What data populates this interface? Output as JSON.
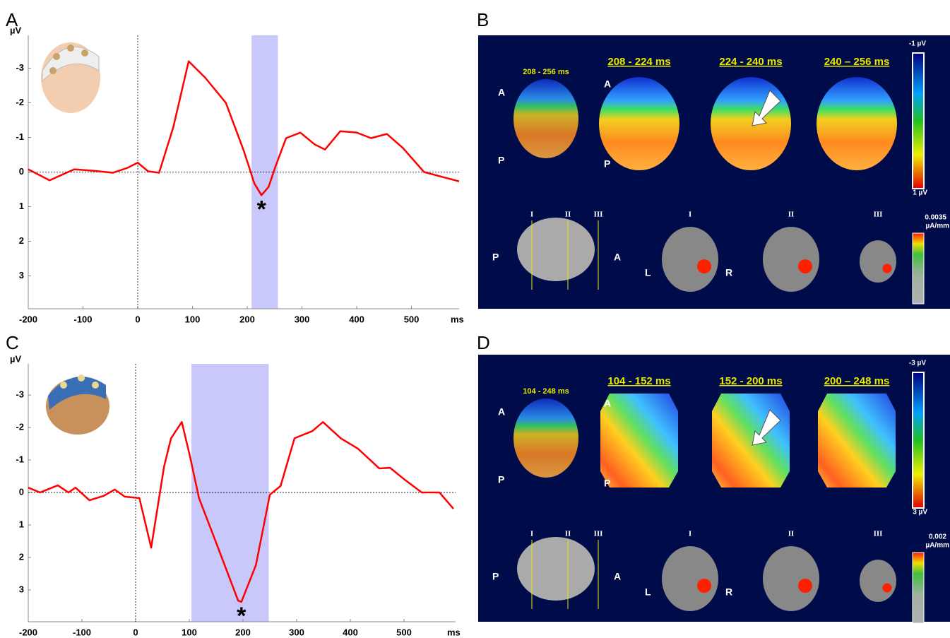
{
  "chart_data": [
    {
      "type": "line",
      "panel": "A",
      "ylabel": "µV",
      "xlabel": "ms",
      "x": [
        -200,
        -161,
        -116,
        -84,
        -45,
        -19,
        0,
        19,
        39,
        65,
        93,
        123,
        161,
        194,
        213,
        226,
        239,
        252,
        271,
        297,
        323,
        342,
        370,
        400,
        426,
        455,
        484,
        523,
        587
      ],
      "series": [
        {
          "color": "#ff0000",
          "values": [
            -0.08,
            0.24,
            -0.08,
            -0.04,
            0.02,
            -0.12,
            -0.27,
            -0.02,
            0.02,
            -1.3,
            -3.2,
            -2.73,
            -2.0,
            -0.6,
            0.33,
            0.67,
            0.43,
            -0.18,
            -0.98,
            -1.14,
            -0.8,
            -0.65,
            -1.18,
            -1.14,
            -0.98,
            -1.1,
            -0.7,
            0,
            0.27
          ]
        }
      ],
      "xlim": [
        -200,
        587
      ],
      "ylim": [
        3.95,
        -3.95
      ],
      "xticks": [
        -200,
        -100,
        0,
        100,
        200,
        300,
        400,
        500
      ],
      "yticks": [
        -3,
        -2,
        -1,
        0,
        1,
        2,
        3
      ],
      "highlight": [
        208,
        256
      ],
      "highlight_color": "#c8c8fa",
      "annotation": "*"
    },
    {
      "type": "line",
      "panel": "C",
      "ylabel": "µV",
      "xlabel": "ms",
      "x": [
        -200,
        -178,
        -145,
        -125,
        -112,
        -86,
        -59,
        -39,
        -20,
        7,
        29,
        53,
        66,
        86,
        101,
        118,
        151,
        191,
        197,
        224,
        250,
        270,
        296,
        329,
        349,
        382,
        414,
        454,
        474,
        500,
        533,
        566,
        592
      ],
      "series": [
        {
          "color": "#ff0000",
          "values": [
            -0.15,
            0,
            -0.22,
            0,
            -0.15,
            0.24,
            0.1,
            -0.09,
            0.13,
            0.17,
            1.7,
            -0.8,
            -1.67,
            -2.17,
            -1.13,
            0.17,
            1.59,
            3.33,
            3.37,
            2.24,
            0.07,
            -0.2,
            -1.67,
            -1.89,
            -2.17,
            -1.67,
            -1.35,
            -0.74,
            -0.76,
            -0.41,
            0,
            0,
            0.5
          ]
        }
      ],
      "xlim": [
        -200,
        596
      ],
      "ylim": [
        3.98,
        -3.96
      ],
      "xticks": [
        -200,
        -100,
        0,
        100,
        200,
        300,
        400,
        500
      ],
      "yticks": [
        -3,
        -2,
        -1,
        0,
        1,
        2,
        3
      ],
      "highlight": [
        104,
        248
      ],
      "highlight_color": "#c8c8fa",
      "annotation": "*"
    }
  ],
  "panels": [
    {
      "letter": "B",
      "window": "208 - 256 ms",
      "map_titles": [
        "208 - 224 ms",
        "224 - 240 ms",
        "240 – 256 ms"
      ],
      "head_labels": [
        "A",
        "P"
      ],
      "colorbar_top": "-1 µV",
      "colorbar_bottom": "1 µV",
      "density_max": "0.0035",
      "density_unit": "µA/mm",
      "slice_labels": [
        "I",
        "II",
        "III"
      ],
      "view_labels": [
        "P",
        "A"
      ],
      "side_labels": [
        "L",
        "R"
      ]
    },
    {
      "letter": "D",
      "window": "104 - 248 ms",
      "map_titles": [
        "104 - 152 ms",
        "152 - 200 ms",
        "200 – 248 ms"
      ],
      "head_labels": [
        "A",
        "P"
      ],
      "colorbar_top": "-3 µV",
      "colorbar_bottom": "3 µV",
      "density_max": "0.002",
      "density_unit": "µA/mm",
      "slice_labels": [
        "I",
        "II",
        "III"
      ],
      "view_labels": [
        "P",
        "A"
      ],
      "side_labels": [
        "L",
        "R"
      ]
    }
  ]
}
